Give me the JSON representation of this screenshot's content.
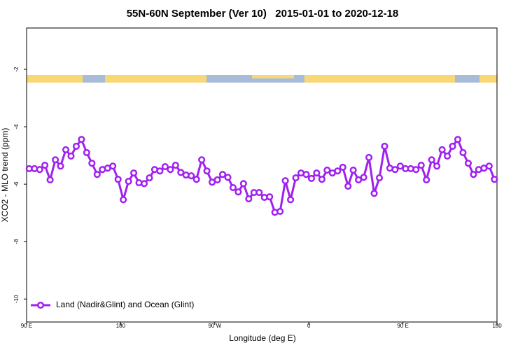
{
  "chart_data": {
    "type": "line",
    "title": "55N-60N September (Ver 10)   2015-01-01 to 2020-12-18",
    "xlabel": "Longitude (deg E)",
    "ylabel": "XCO2 - MLO trend (ppm)",
    "x": [
      92.5,
      97.5,
      102.5,
      107.5,
      112.5,
      117.5,
      122.5,
      127.5,
      132.5,
      137.5,
      142.5,
      147.5,
      152.5,
      157.5,
      162.5,
      167.5,
      172.5,
      177.5,
      182.5,
      187.5,
      192.5,
      197.5,
      202.5,
      207.5,
      212.5,
      217.5,
      222.5,
      227.5,
      232.5,
      237.5,
      242.5,
      247.5,
      252.5,
      257.5,
      262.5,
      267.5,
      272.5,
      277.5,
      282.5,
      287.5,
      292.5,
      297.5,
      302.5,
      307.5,
      312.5,
      317.5,
      322.5,
      327.5,
      332.5,
      337.5,
      342.5,
      347.5,
      352.5,
      357.5,
      362.5,
      367.5,
      372.5,
      377.5,
      382.5,
      387.5,
      392.5,
      397.5,
      402.5,
      407.5,
      412.5,
      417.5,
      422.5,
      427.5,
      432.5,
      437.5,
      442.5,
      447.5,
      452.5,
      457.5,
      462.5,
      467.5,
      472.5,
      477.5,
      482.5,
      487.5,
      492.5,
      497.5,
      502.5,
      507.5,
      512.5,
      517.5,
      522.5,
      527.5,
      532.5,
      537.5
    ],
    "series": [
      {
        "name": "Land (Nadir&Glint) and Ocean (Glint)",
        "color": "#a020f0",
        "values": [
          -5.46,
          -5.46,
          -5.49,
          -5.34,
          -5.85,
          -5.15,
          -5.37,
          -4.8,
          -5.02,
          -4.68,
          -4.44,
          -4.9,
          -5.27,
          -5.66,
          -5.49,
          -5.44,
          -5.37,
          -5.83,
          -6.54,
          -5.9,
          -5.61,
          -5.95,
          -5.98,
          -5.78,
          -5.49,
          -5.54,
          -5.39,
          -5.49,
          -5.34,
          -5.59,
          -5.68,
          -5.71,
          -5.83,
          -5.15,
          -5.54,
          -5.93,
          -5.85,
          -5.66,
          -5.76,
          -6.12,
          -6.27,
          -5.98,
          -6.51,
          -6.29,
          -6.29,
          -6.46,
          -6.44,
          -6.98,
          -6.95,
          -5.88,
          -6.54,
          -5.78,
          -5.61,
          -5.66,
          -5.8,
          -5.61,
          -5.83,
          -5.51,
          -5.61,
          -5.54,
          -5.41,
          -6.07,
          -5.51,
          -5.85,
          -5.76,
          -5.07,
          -6.32,
          -5.78,
          -4.68,
          -5.44,
          -5.49,
          -5.37,
          -5.46,
          -5.46,
          -5.49,
          -5.34,
          -5.85,
          -5.15,
          -5.37,
          -4.8,
          -5.02,
          -4.68,
          -4.44,
          -4.9,
          -5.27,
          -5.66,
          -5.49,
          -5.44,
          -5.37,
          -5.83
        ]
      }
    ],
    "xlim": [
      90,
      540
    ],
    "xticks": [
      {
        "value": 90,
        "label": "90 E"
      },
      180,
      {
        "value": 270,
        "label": "90 W"
      },
      {
        "value": 360,
        "label": "0"
      },
      {
        "value": 450,
        "label": "90 E"
      },
      {
        "value": 540,
        "label": "180"
      }
    ],
    "ylim": [
      -10.8,
      -0.56
    ],
    "yticks": [
      -10,
      -8,
      -6,
      -4,
      -2
    ],
    "legend": "bottom-left"
  }
}
